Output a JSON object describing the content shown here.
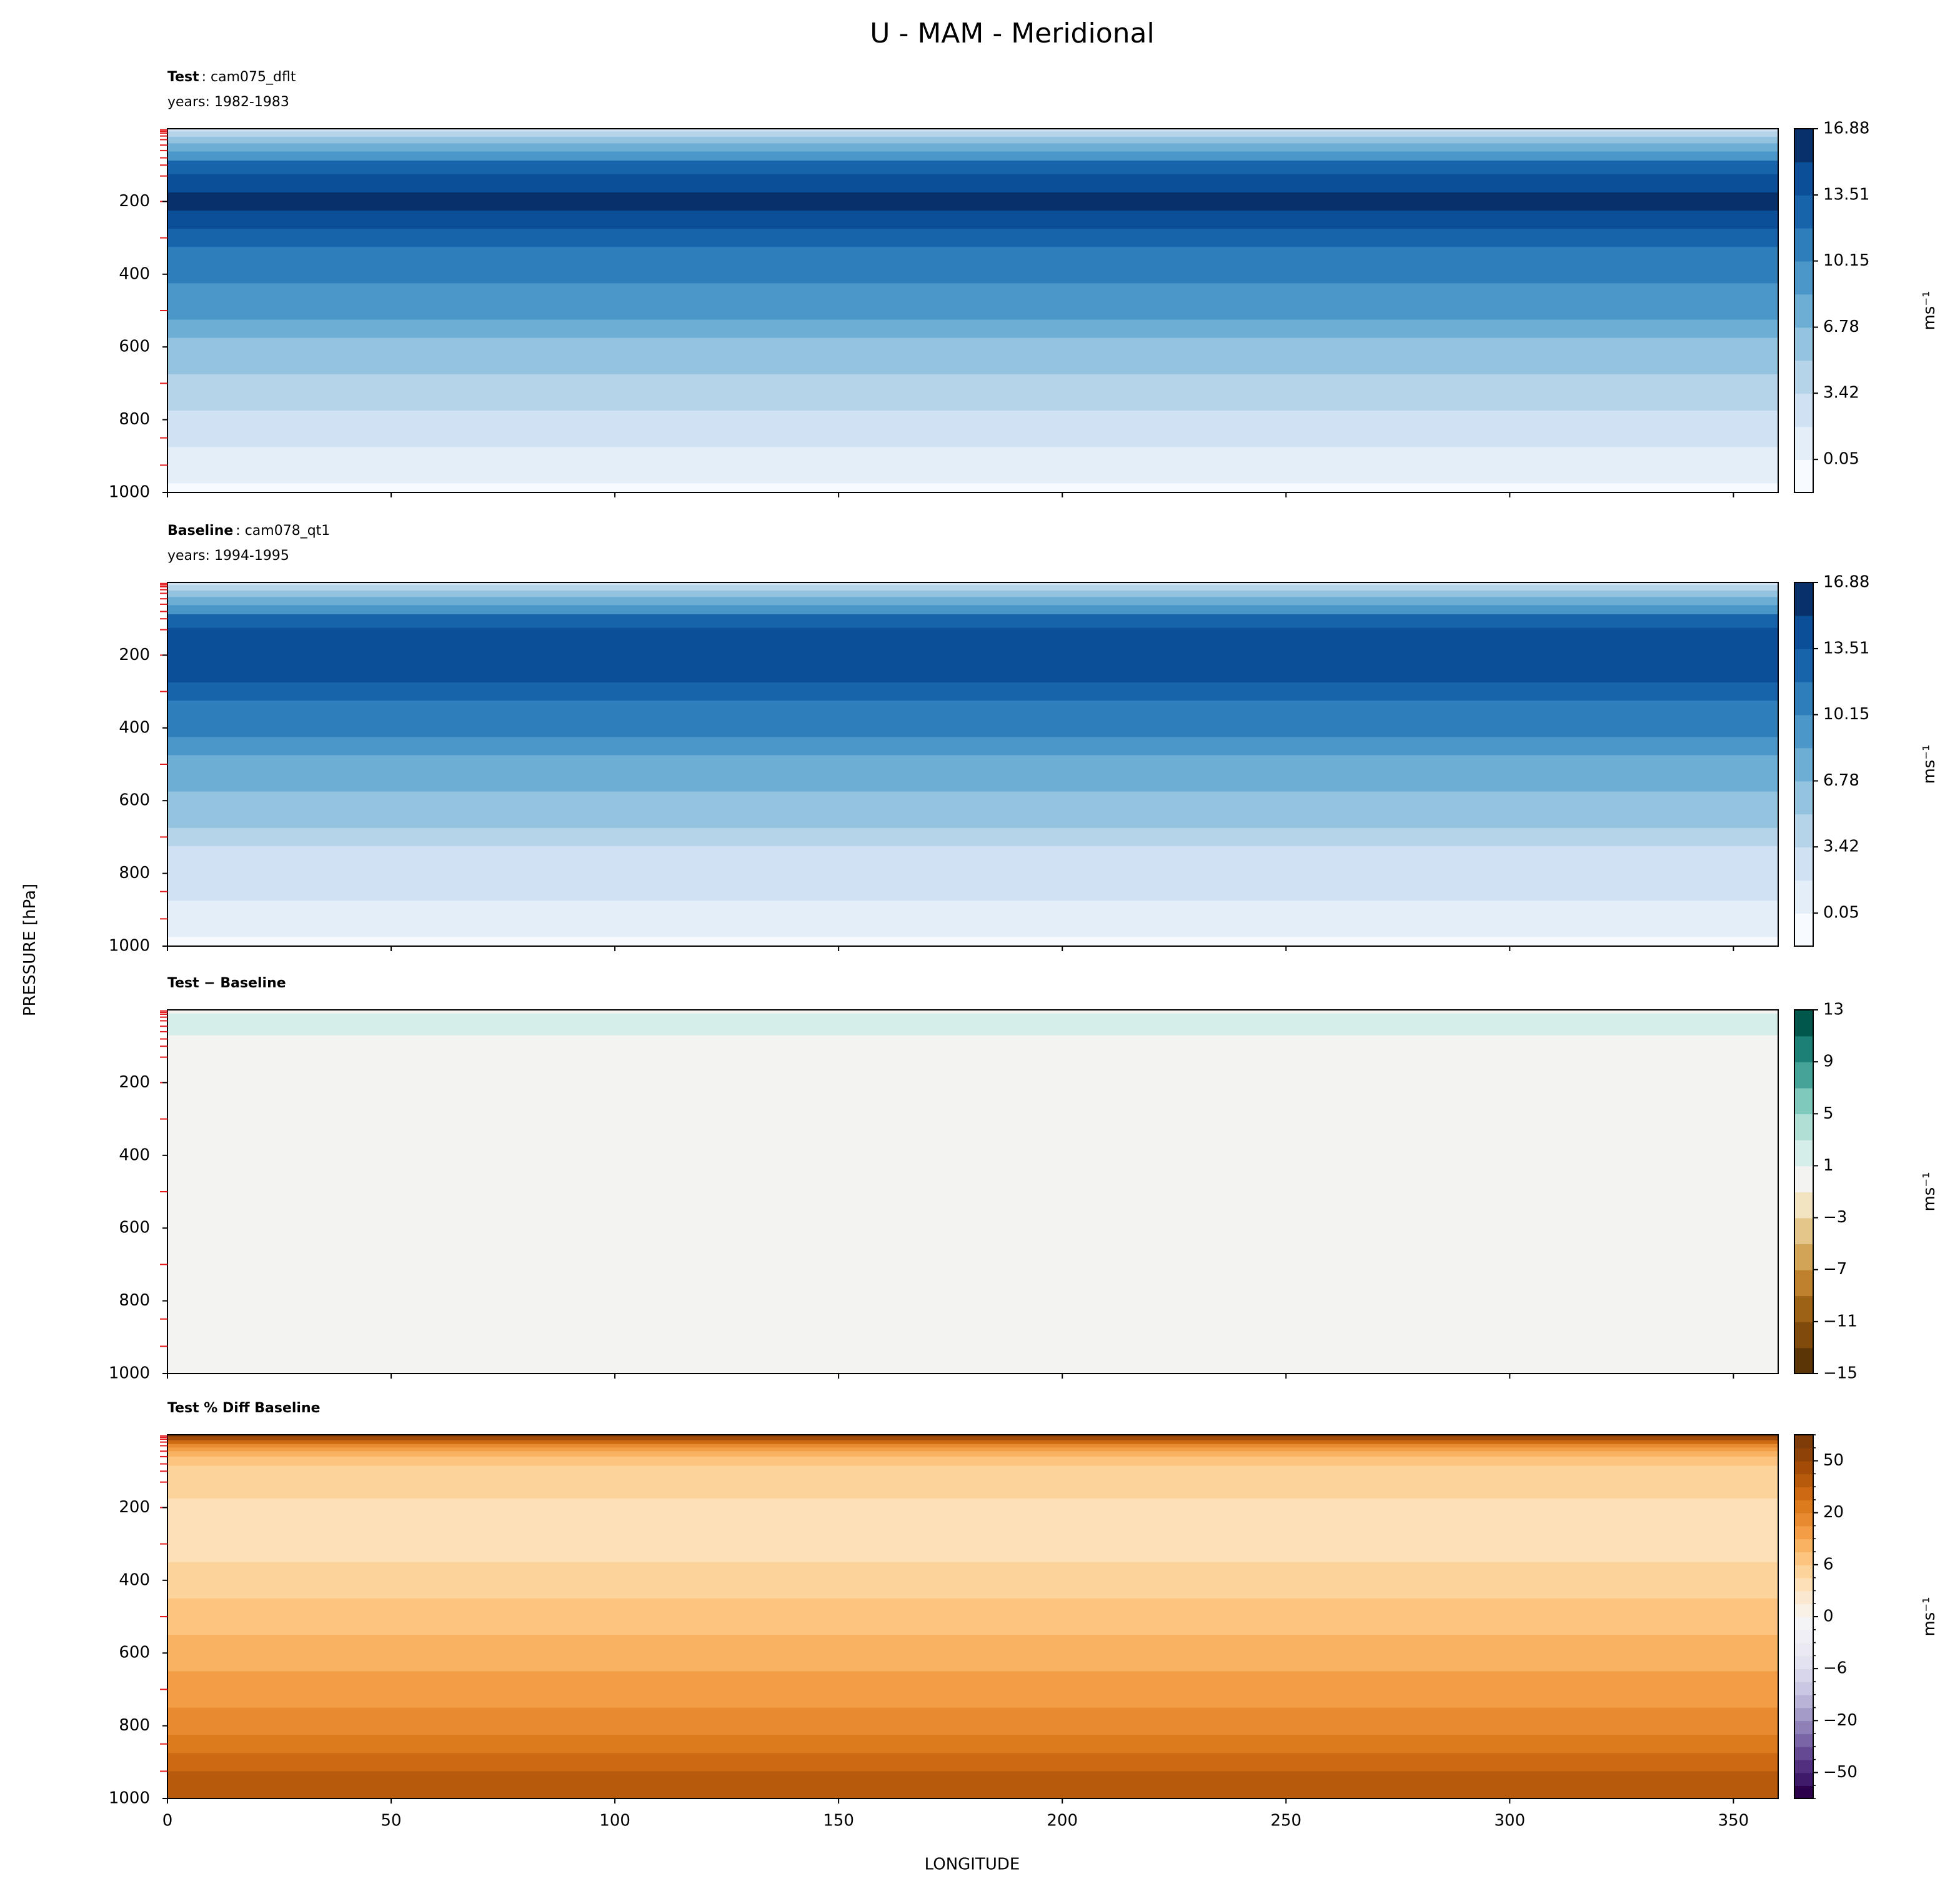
{
  "chart_data": {
    "type": "contour-profile",
    "title": "U - MAM - Meridional",
    "ylabel": "PRESSURE [hPa]",
    "xlabel": "LONGITUDE",
    "xlim": [
      0,
      360
    ],
    "xticks": [
      0,
      50,
      100,
      150,
      200,
      250,
      300,
      350
    ],
    "ylim": [
      0,
      1000
    ],
    "y_inverted": true,
    "yticks": [
      200,
      400,
      600,
      800,
      1000
    ],
    "model_levels": [
      3,
      7,
      12,
      20,
      30,
      45,
      60,
      80,
      100,
      130,
      200,
      300,
      500,
      700,
      850,
      925
    ],
    "model_level_color": "#e31a1c",
    "panels": [
      {
        "title_bold": "Test",
        "title_rest": ": cam075_dflt",
        "subtitle": "years: 1982-1983",
        "cbar_label": "ms⁻¹",
        "cbar_spacing": "linear",
        "levels": [
          -1.63,
          0.05,
          1.73,
          3.42,
          5.1,
          6.78,
          8.47,
          10.15,
          11.83,
          13.51,
          15.2,
          16.88
        ],
        "colors": [
          "#f7fbff",
          "#e3eef9",
          "#cfe1f2",
          "#b5d4e9",
          "#93c3df",
          "#6daed5",
          "#4b97c9",
          "#2f7ebc",
          "#1864aa",
          "#0a4f97",
          "#08306b"
        ],
        "cbar_ticks": [
          0.05,
          3.42,
          6.78,
          10.15,
          13.51,
          16.88
        ],
        "profile": {
          "pressure": [
            0,
            15,
            30,
            50,
            75,
            100,
            150,
            200,
            250,
            300,
            350,
            400,
            450,
            500,
            550,
            600,
            650,
            700,
            750,
            800,
            850,
            900,
            950,
            1000
          ],
          "values": [
            2,
            4,
            6,
            8,
            10,
            12,
            14.5,
            15.5,
            14.5,
            13,
            11.5,
            10.5,
            9.5,
            8.5,
            7.5,
            6.5,
            5.5,
            4.5,
            3.5,
            3,
            2.5,
            1.5,
            0.8,
            -0.5
          ]
        }
      },
      {
        "title_bold": "Baseline",
        "title_rest": ": cam078_qt1",
        "subtitle": "years: 1994-1995",
        "cbar_label": "ms⁻¹",
        "cbar_spacing": "linear",
        "levels": [
          -1.63,
          0.05,
          1.73,
          3.42,
          5.1,
          6.78,
          8.47,
          10.15,
          11.83,
          13.51,
          15.2,
          16.88
        ],
        "colors": [
          "#f7fbff",
          "#e3eef9",
          "#cfe1f2",
          "#b5d4e9",
          "#93c3df",
          "#6daed5",
          "#4b97c9",
          "#2f7ebc",
          "#1864aa",
          "#0a4f97",
          "#08306b"
        ],
        "cbar_ticks": [
          0.05,
          3.42,
          6.78,
          10.15,
          13.51,
          16.88
        ],
        "profile": {
          "pressure": [
            0,
            15,
            30,
            50,
            75,
            100,
            150,
            200,
            250,
            300,
            350,
            400,
            450,
            500,
            550,
            600,
            650,
            700,
            750,
            800,
            850,
            900,
            950,
            1000
          ],
          "values": [
            2,
            4,
            6,
            8,
            10,
            12,
            14.3,
            14.9,
            14.3,
            12.8,
            11.3,
            10.3,
            9.3,
            8.3,
            7.3,
            6.3,
            5.3,
            4.3,
            3.3,
            2.8,
            2.3,
            1.3,
            0.6,
            -0.5
          ]
        }
      },
      {
        "title_bold": "Test − Baseline",
        "cbar_label": "ms⁻¹",
        "cbar_spacing": "linear",
        "levels": [
          -15,
          -13,
          -11,
          -9,
          -7,
          -5,
          -3,
          -1,
          1,
          3,
          5,
          7,
          9,
          11,
          13
        ],
        "colors": [
          "#5c3506",
          "#804a0a",
          "#9e6216",
          "#bf812d",
          "#d2a458",
          "#e4c68b",
          "#f3e4c1",
          "#f3f4f2",
          "#d6eee9",
          "#b0dfd5",
          "#7fc8bc",
          "#46a398",
          "#1c8076",
          "#01574b"
        ],
        "cbar_ticks": [
          {
            "value": -15,
            "label": "−15"
          },
          {
            "value": -11,
            "label": "−11"
          },
          {
            "value": -7,
            "label": "−7"
          },
          {
            "value": -3,
            "label": "−3"
          },
          1,
          5,
          9,
          13
        ],
        "profile": {
          "pressure": [
            0,
            20,
            40,
            60,
            80,
            100,
            200,
            300,
            500,
            700,
            900,
            1000
          ],
          "values": [
            0.5,
            1.5,
            1.5,
            1.5,
            0.5,
            0.3,
            0.2,
            0.1,
            0,
            0,
            0,
            0
          ]
        }
      },
      {
        "title_bold": "Test % Diff Baseline",
        "cbar_label": "ms⁻¹",
        "cbar_spacing": "uniform",
        "levels": [
          -100,
          -70,
          -50,
          -40,
          -30,
          -25,
          -20,
          -15,
          -10,
          -8,
          -6,
          -4,
          -2,
          -1,
          0,
          1,
          2,
          4,
          6,
          8,
          10,
          15,
          20,
          25,
          30,
          40,
          50,
          70,
          100
        ],
        "colors": [
          "#2d004b",
          "#3f1a6a",
          "#52307f",
          "#654a93",
          "#7a66a6",
          "#8f81b8",
          "#a59bc9",
          "#b8b3d7",
          "#cac7e3",
          "#d8d6eb",
          "#e3e2f0",
          "#ebeaf3",
          "#f0eff5",
          "#f4f3f5",
          "#f8f1e6",
          "#fbe8d0",
          "#fde0b7",
          "#fdd39c",
          "#fdc47f",
          "#f9b262",
          "#f39d47",
          "#e88a30",
          "#dc7a1e",
          "#cc6912",
          "#b85a0b",
          "#a24c08",
          "#8f4208",
          "#7f3b08"
        ],
        "cbar_ticks": [
          50,
          20,
          6,
          0,
          {
            "value": -6,
            "label": "−6"
          },
          {
            "value": -20,
            "label": "−20"
          },
          {
            "value": -50,
            "label": "−50"
          }
        ],
        "profile": {
          "pressure": [
            0,
            10,
            20,
            30,
            40,
            50,
            70,
            100,
            150,
            200,
            300,
            400,
            500,
            600,
            700,
            800,
            850,
            900,
            950,
            1000
          ],
          "values": [
            60,
            40,
            25,
            18,
            12,
            9,
            7,
            5,
            4,
            3,
            3,
            4,
            6,
            8,
            10,
            15,
            20,
            25,
            35,
            30
          ]
        }
      }
    ]
  }
}
